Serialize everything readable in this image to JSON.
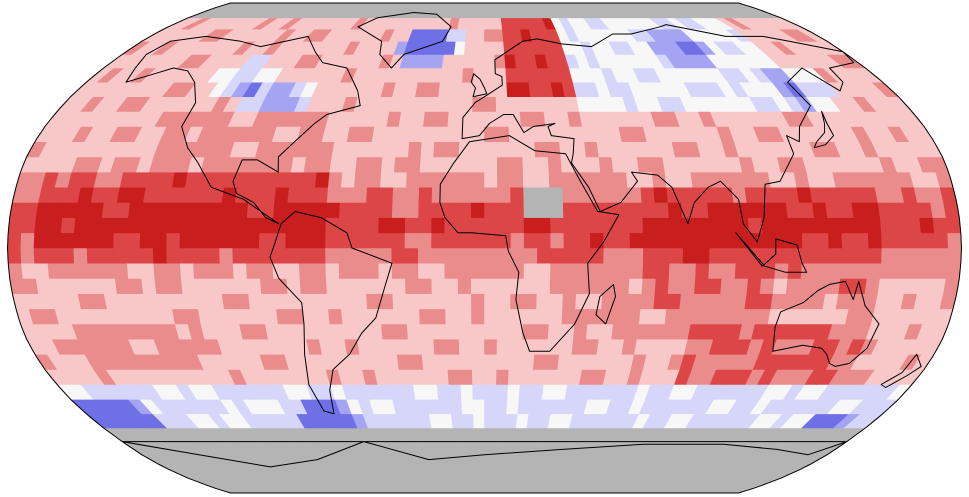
{
  "map": {
    "projection": "robinson",
    "background_color": "#ffffff",
    "no_data_color": "#b4b4b4",
    "border_color": "#000000",
    "palette": {
      "blue_dark": "#6f6fe6",
      "blue_mid": "#a4a4f2",
      "blue_light": "#d6d6fa",
      "neutral": "#f7f7f7",
      "red_light": "#f8c8c8",
      "red_mid": "#ea8c8c",
      "red_dark": "#dc4646",
      "red_deep": "#c81e1e",
      "gray": "#b4b4b4"
    },
    "anomaly_bands": [
      {
        "key": "blue_dark",
        "lat": 67,
        "lon": -30
      },
      {
        "key": "blue_mid",
        "lat": 70,
        "lon": -25
      },
      {
        "key": "blue_mid",
        "lat": 50,
        "lon": -90
      },
      {
        "key": "blue_light",
        "lat": 56,
        "lon": -110
      },
      {
        "key": "blue_mid",
        "lat": -58,
        "lon": -70
      },
      {
        "key": "blue_mid",
        "lat": -55,
        "lon": -165
      },
      {
        "key": "blue_light",
        "lat": -62,
        "lon": 160
      },
      {
        "key": "blue_light",
        "lat": 68,
        "lon": 100
      },
      {
        "key": "blue_light",
        "lat": 53,
        "lon": 142
      }
    ]
  }
}
